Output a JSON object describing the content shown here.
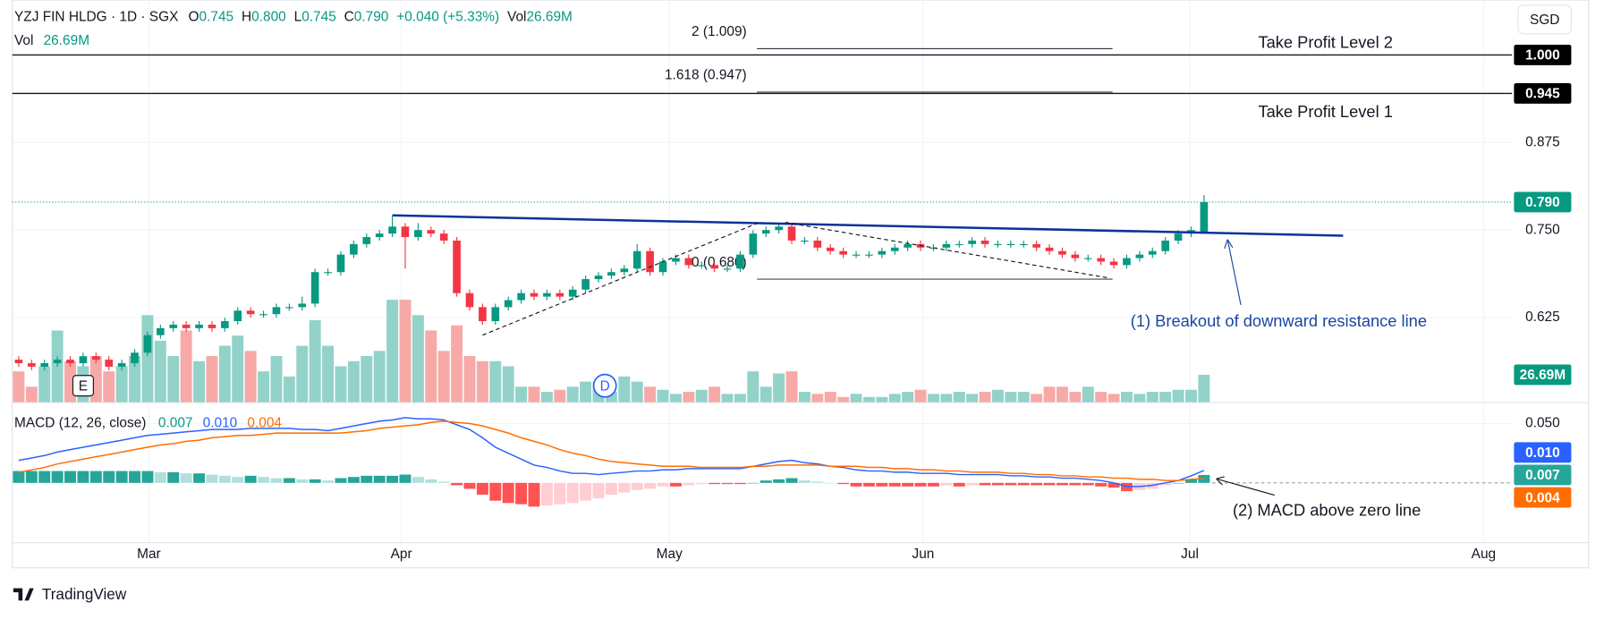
{
  "chart_data": {
    "type": "candlestick",
    "header": {
      "symbol": "YZJ FIN HLDG · 1D · SGX",
      "ohlc": [
        {
          "label": "O",
          "value": "0.745"
        },
        {
          "label": "H",
          "value": "0.800"
        },
        {
          "label": "L",
          "value": "0.745"
        },
        {
          "label": "C",
          "value": "0.790"
        }
      ],
      "change": "+0.040 (+5.33%)",
      "vol_label": "Vol",
      "vol": "26.69M",
      "vol_label_2": "Vol"
    },
    "currency": "SGD",
    "branding": "TradingView",
    "xlim": [
      -0.5,
      115.9
    ],
    "xticks": [
      {
        "value": 10.1,
        "label": "Mar"
      },
      {
        "value": 29.7,
        "label": "Apr"
      },
      {
        "value": 50.5,
        "label": "May"
      },
      {
        "value": 70.2,
        "label": "Jun"
      },
      {
        "value": 90.9,
        "label": "Jul"
      },
      {
        "value": 113.7,
        "label": "Aug"
      }
    ],
    "ylim": [
      0.5045,
      1.0783
    ],
    "yticks": [
      0.875,
      {
        "value": 0.75,
        "label": "0.750"
      },
      0.625
    ],
    "grid": true,
    "colors": {
      "up": "#089981",
      "down": "#f23645",
      "volume_up": "#92d2c9",
      "volume_down": "#f7a9a7",
      "trend": "#0c3299",
      "last_price": "#089981"
    },
    "open": [
      0.565,
      0.56,
      0.555,
      0.56,
      0.565,
      0.56,
      0.57,
      0.565,
      0.555,
      0.56,
      0.575,
      0.6,
      0.61,
      0.615,
      0.61,
      0.615,
      0.61,
      0.62,
      0.635,
      0.63,
      0.63,
      0.64,
      0.64,
      0.645,
      0.69,
      0.69,
      0.715,
      0.73,
      0.74,
      0.745,
      0.755,
      0.74,
      0.75,
      0.745,
      0.735,
      0.66,
      0.64,
      0.62,
      0.64,
      0.65,
      0.66,
      0.655,
      0.66,
      0.655,
      0.665,
      0.68,
      0.685,
      0.69,
      0.695,
      0.72,
      0.69,
      0.705,
      0.71,
      0.7,
      0.7,
      0.695,
      0.695,
      0.715,
      0.745,
      0.75,
      0.755,
      0.735,
      0.735,
      0.725,
      0.72,
      0.715,
      0.715,
      0.715,
      0.72,
      0.725,
      0.73,
      0.725,
      0.725,
      0.73,
      0.73,
      0.735,
      0.73,
      0.73,
      0.73,
      0.73,
      0.725,
      0.72,
      0.715,
      0.71,
      0.71,
      0.705,
      0.7,
      0.71,
      0.715,
      0.72,
      0.735,
      0.745,
      0.745
    ],
    "high": [
      0.57,
      0.565,
      0.565,
      0.57,
      0.57,
      0.575,
      0.575,
      0.57,
      0.565,
      0.58,
      0.605,
      0.615,
      0.62,
      0.62,
      0.62,
      0.62,
      0.625,
      0.64,
      0.64,
      0.635,
      0.645,
      0.645,
      0.655,
      0.695,
      0.695,
      0.72,
      0.735,
      0.745,
      0.75,
      0.77,
      0.76,
      0.76,
      0.755,
      0.75,
      0.74,
      0.665,
      0.645,
      0.645,
      0.655,
      0.665,
      0.665,
      0.665,
      0.665,
      0.67,
      0.685,
      0.69,
      0.695,
      0.7,
      0.73,
      0.725,
      0.71,
      0.715,
      0.715,
      0.705,
      0.705,
      0.7,
      0.72,
      0.75,
      0.755,
      0.76,
      0.76,
      0.74,
      0.74,
      0.73,
      0.725,
      0.72,
      0.72,
      0.725,
      0.73,
      0.735,
      0.735,
      0.73,
      0.735,
      0.735,
      0.74,
      0.74,
      0.735,
      0.735,
      0.735,
      0.735,
      0.73,
      0.725,
      0.72,
      0.715,
      0.715,
      0.71,
      0.715,
      0.72,
      0.725,
      0.74,
      0.75,
      0.755,
      0.8
    ],
    "low": [
      0.555,
      0.55,
      0.55,
      0.555,
      0.555,
      0.555,
      0.56,
      0.55,
      0.55,
      0.555,
      0.57,
      0.595,
      0.605,
      0.605,
      0.605,
      0.605,
      0.605,
      0.615,
      0.625,
      0.625,
      0.625,
      0.635,
      0.635,
      0.64,
      0.685,
      0.685,
      0.71,
      0.725,
      0.735,
      0.74,
      0.695,
      0.735,
      0.74,
      0.73,
      0.655,
      0.635,
      0.615,
      0.615,
      0.635,
      0.645,
      0.65,
      0.65,
      0.65,
      0.65,
      0.66,
      0.675,
      0.68,
      0.685,
      0.69,
      0.685,
      0.685,
      0.7,
      0.695,
      0.695,
      0.69,
      0.69,
      0.69,
      0.71,
      0.74,
      0.745,
      0.73,
      0.73,
      0.72,
      0.715,
      0.71,
      0.71,
      0.71,
      0.71,
      0.715,
      0.72,
      0.72,
      0.72,
      0.72,
      0.725,
      0.725,
      0.725,
      0.725,
      0.725,
      0.725,
      0.72,
      0.715,
      0.71,
      0.705,
      0.705,
      0.7,
      0.695,
      0.695,
      0.705,
      0.71,
      0.715,
      0.73,
      0.74,
      0.745
    ],
    "close": [
      0.56,
      0.555,
      0.56,
      0.565,
      0.56,
      0.57,
      0.565,
      0.555,
      0.56,
      0.575,
      0.6,
      0.61,
      0.615,
      0.61,
      0.615,
      0.61,
      0.62,
      0.635,
      0.63,
      0.63,
      0.64,
      0.64,
      0.645,
      0.69,
      0.69,
      0.715,
      0.73,
      0.74,
      0.745,
      0.755,
      0.74,
      0.75,
      0.745,
      0.735,
      0.66,
      0.64,
      0.62,
      0.64,
      0.65,
      0.66,
      0.655,
      0.66,
      0.655,
      0.665,
      0.68,
      0.685,
      0.69,
      0.695,
      0.72,
      0.69,
      0.705,
      0.71,
      0.7,
      0.7,
      0.695,
      0.695,
      0.715,
      0.745,
      0.75,
      0.755,
      0.735,
      0.735,
      0.725,
      0.72,
      0.715,
      0.715,
      0.715,
      0.72,
      0.725,
      0.73,
      0.725,
      0.725,
      0.73,
      0.73,
      0.735,
      0.73,
      0.73,
      0.73,
      0.73,
      0.725,
      0.72,
      0.715,
      0.71,
      0.71,
      0.705,
      0.7,
      0.71,
      0.715,
      0.72,
      0.735,
      0.745,
      0.75,
      0.79
    ],
    "last_price_label": "0.790",
    "volume": [
      30,
      15,
      35,
      70,
      40,
      35,
      45,
      30,
      35,
      45,
      85,
      60,
      45,
      70,
      40,
      45,
      55,
      65,
      50,
      30,
      45,
      25,
      55,
      80,
      55,
      35,
      40,
      45,
      50,
      100,
      100,
      85,
      70,
      50,
      75,
      45,
      40,
      40,
      35,
      15,
      15,
      10,
      12,
      15,
      20,
      20,
      10,
      25,
      20,
      15,
      12,
      8,
      10,
      12,
      15,
      8,
      8,
      30,
      15,
      28,
      30,
      10,
      8,
      10,
      5,
      8,
      5,
      5,
      8,
      10,
      12,
      8,
      8,
      10,
      8,
      10,
      12,
      10,
      10,
      8,
      15,
      15,
      10,
      15,
      10,
      8,
      10,
      8,
      10,
      10,
      12,
      12,
      26.69
    ],
    "volume_lim": [
      0,
      393
    ],
    "volume_label": "26.69M",
    "events": [
      {
        "label": "E",
        "x": 5,
        "shape": "square"
      },
      {
        "label": "D",
        "x": 45.5,
        "shape": "circle"
      }
    ],
    "horizontal_lines": [
      {
        "value": 1.0,
        "label": "1.000",
        "text": "Take Profit Level 2"
      },
      {
        "value": 0.945,
        "label": "0.945",
        "text": "Take Profit Level 1"
      }
    ],
    "fib": {
      "x_range": [
        57.3,
        84.9
      ],
      "levels": [
        {
          "value": 1.009,
          "label": "2 (1.009)"
        },
        {
          "value": 0.947,
          "label": "1.618 (0.947)"
        },
        {
          "value": 0.68,
          "label": "0 (0.680)"
        }
      ]
    },
    "trend_lines": [
      {
        "from": [
          29,
          0.771
        ],
        "to": [
          102.8,
          0.742
        ],
        "style": "solid"
      },
      {
        "from": [
          36,
          0.6
        ],
        "to": [
          57.5,
          0.761
        ],
        "style": "dashed"
      },
      {
        "from": [
          59.5,
          0.761
        ],
        "to": [
          84.5,
          0.682
        ],
        "style": "dashed"
      }
    ],
    "annotations": [
      {
        "text": "(1) Breakout of downward resistance line",
        "color": "#1848a0"
      },
      {
        "text": "(2) MACD above zero line",
        "color": "#131722"
      }
    ],
    "macd_title": "MACD (12, 26, close)",
    "macd_lim": [
      -0.05,
      0.0664
    ],
    "macd_yticks": [
      {
        "value": 0.05,
        "label": "0.050"
      }
    ],
    "macd": {
      "color": "#2962ff",
      "last_label": "0.010",
      "values": [
        0.019,
        0.021,
        0.023,
        0.026,
        0.028,
        0.03,
        0.032,
        0.034,
        0.036,
        0.038,
        0.04,
        0.041,
        0.042,
        0.043,
        0.044,
        0.045,
        0.045,
        0.045,
        0.046,
        0.046,
        0.046,
        0.046,
        0.045,
        0.045,
        0.044,
        0.046,
        0.048,
        0.05,
        0.052,
        0.053,
        0.055,
        0.054,
        0.054,
        0.053,
        0.049,
        0.045,
        0.038,
        0.03,
        0.025,
        0.02,
        0.015,
        0.013,
        0.01,
        0.008,
        0.008,
        0.007,
        0.008,
        0.009,
        0.01,
        0.01,
        0.011,
        0.011,
        0.012,
        0.012,
        0.012,
        0.012,
        0.012,
        0.014,
        0.016,
        0.018,
        0.019,
        0.017,
        0.016,
        0.014,
        0.013,
        0.011,
        0.01,
        0.01,
        0.009,
        0.009,
        0.008,
        0.008,
        0.008,
        0.007,
        0.007,
        0.007,
        0.007,
        0.006,
        0.006,
        0.005,
        0.005,
        0.004,
        0.004,
        0.003,
        0.002,
        0.0,
        -0.003,
        -0.003,
        -0.002,
        0.0,
        0.002,
        0.006,
        0.0104
      ]
    },
    "signal": {
      "color": "#ff6d00",
      "last_label": "0.004",
      "values": [
        0.009,
        0.011,
        0.013,
        0.016,
        0.018,
        0.02,
        0.022,
        0.024,
        0.026,
        0.028,
        0.03,
        0.032,
        0.033,
        0.035,
        0.036,
        0.038,
        0.039,
        0.04,
        0.04,
        0.041,
        0.042,
        0.042,
        0.042,
        0.042,
        0.042,
        0.042,
        0.043,
        0.044,
        0.046,
        0.047,
        0.048,
        0.049,
        0.051,
        0.052,
        0.051,
        0.05,
        0.048,
        0.045,
        0.042,
        0.038,
        0.035,
        0.032,
        0.028,
        0.025,
        0.023,
        0.02,
        0.018,
        0.017,
        0.016,
        0.015,
        0.014,
        0.014,
        0.014,
        0.013,
        0.013,
        0.013,
        0.013,
        0.014,
        0.014,
        0.015,
        0.015,
        0.015,
        0.015,
        0.014,
        0.014,
        0.014,
        0.013,
        0.013,
        0.012,
        0.012,
        0.011,
        0.011,
        0.01,
        0.01,
        0.009,
        0.009,
        0.009,
        0.008,
        0.008,
        0.007,
        0.007,
        0.006,
        0.006,
        0.005,
        0.005,
        0.004,
        0.004,
        0.003,
        0.003,
        0.002,
        0.002,
        0.003,
        0.0037
      ]
    },
    "histogram": {
      "colors": {
        "pos_up": "#26a69a",
        "pos_down": "#b2dfdb",
        "neg_down": "#ff5252",
        "neg_up": "#ffcdd2"
      },
      "last_label": "0.007",
      "values": [
        0.01,
        0.01,
        0.01,
        0.01,
        0.01,
        0.01,
        0.01,
        0.01,
        0.01,
        0.01,
        0.01,
        0.009,
        0.009,
        0.008,
        0.008,
        0.007,
        0.006,
        0.005,
        0.006,
        0.005,
        0.004,
        0.004,
        0.003,
        0.003,
        0.002,
        0.004,
        0.005,
        0.006,
        0.006,
        0.006,
        0.007,
        0.005,
        0.003,
        0.001,
        -0.002,
        -0.005,
        -0.01,
        -0.015,
        -0.017,
        -0.018,
        -0.02,
        -0.019,
        -0.018,
        -0.017,
        -0.015,
        -0.013,
        -0.01,
        -0.008,
        -0.006,
        -0.005,
        -0.003,
        -0.003,
        -0.002,
        -0.001,
        -0.001,
        -0.001,
        -0.001,
        0.0,
        0.002,
        0.003,
        0.004,
        0.002,
        0.001,
        0.0,
        -0.001,
        -0.003,
        -0.003,
        -0.003,
        -0.003,
        -0.003,
        -0.003,
        -0.003,
        -0.002,
        -0.003,
        -0.002,
        -0.002,
        -0.002,
        -0.002,
        -0.002,
        -0.002,
        -0.002,
        -0.002,
        -0.002,
        -0.002,
        -0.003,
        -0.004,
        -0.007,
        -0.006,
        -0.005,
        -0.002,
        0.0,
        0.003,
        0.0067
      ]
    }
  }
}
